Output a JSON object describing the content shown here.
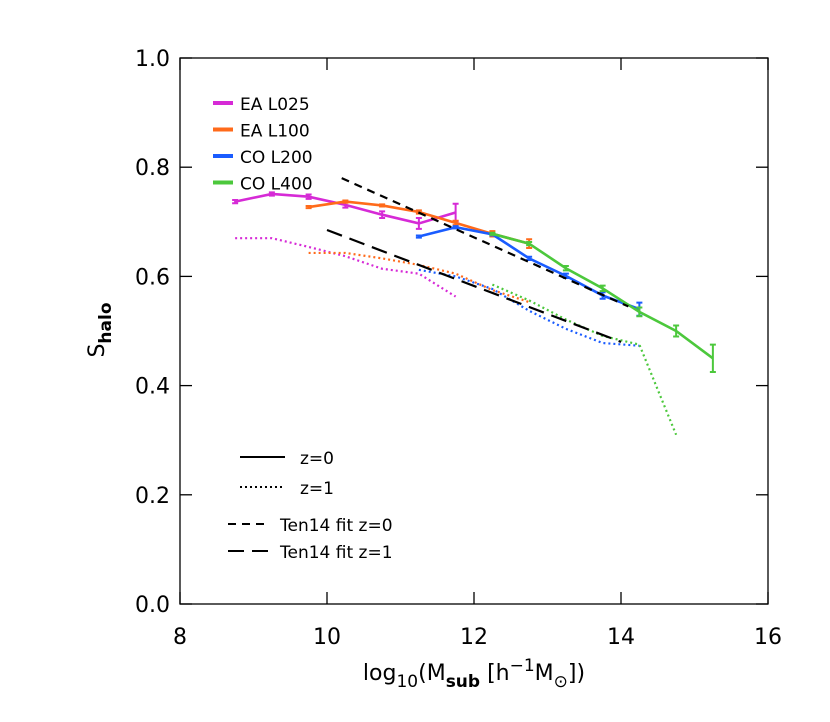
{
  "chart_data": {
    "type": "line",
    "ylabel": "S",
    "ylabel_sub": "halo",
    "xlabel_parts": [
      {
        "text": "log",
        "pos": "base"
      },
      {
        "text": "10",
        "pos": "sub"
      },
      {
        "text": "(M",
        "pos": "base"
      },
      {
        "text": "sub",
        "pos": "sub"
      },
      {
        "text": " [h",
        "pos": "base"
      },
      {
        "text": "−1",
        "pos": "sup"
      },
      {
        "text": "M",
        "pos": "base"
      },
      {
        "text": "⊙",
        "pos": "sub"
      },
      {
        "text": "])",
        "pos": "base"
      }
    ],
    "xlim": [
      8,
      16
    ],
    "ylim": [
      0,
      1
    ],
    "xticks": [
      8,
      10,
      12,
      14,
      16
    ],
    "yticks": [
      {
        "value": 0,
        "label": "0.0"
      },
      0.2,
      0.4,
      0.6,
      0.8,
      {
        "value": 1,
        "label": "1.0"
      }
    ],
    "series": [
      {
        "name": "EA L025",
        "color": "#d62ad6",
        "style": "solid",
        "x": [
          8.75,
          9.25,
          9.75,
          10.25,
          10.75,
          11.25,
          11.75
        ],
        "values": [
          0.737,
          0.751,
          0.746,
          0.731,
          0.713,
          0.697,
          0.717
        ],
        "errors": [
          0.003,
          0.003,
          0.004,
          0.005,
          0.006,
          0.01,
          0.016
        ]
      },
      {
        "name": "EA L100",
        "color": "#ff6a1a",
        "style": "solid",
        "x": [
          9.75,
          10.25,
          10.75,
          11.25,
          11.75,
          12.25,
          12.75
        ],
        "values": [
          0.727,
          0.737,
          0.73,
          0.718,
          0.698,
          0.678,
          0.66
        ],
        "errors": [
          0.002,
          0.002,
          0.002,
          0.003,
          0.004,
          0.005,
          0.008
        ]
      },
      {
        "name": "CO L200",
        "color": "#1a5cff",
        "style": "solid",
        "x": [
          11.25,
          11.75,
          12.25,
          12.75,
          13.25,
          13.75,
          14.25
        ],
        "values": [
          0.673,
          0.69,
          0.677,
          0.633,
          0.601,
          0.565,
          0.54
        ],
        "errors": [
          0.002,
          0.002,
          0.002,
          0.003,
          0.004,
          0.006,
          0.012
        ]
      },
      {
        "name": "CO L400",
        "color": "#4cc83c",
        "style": "solid",
        "x": [
          12.25,
          12.75,
          13.25,
          13.75,
          14.25,
          14.75,
          15.25
        ],
        "values": [
          0.678,
          0.66,
          0.615,
          0.578,
          0.535,
          0.5,
          0.45
        ],
        "errors": [
          0.002,
          0.003,
          0.004,
          0.005,
          0.008,
          0.01,
          0.025
        ]
      },
      {
        "color": "#d62ad6",
        "style": "dotted",
        "x": [
          8.75,
          9.25,
          9.75,
          10.25,
          10.75,
          11.25,
          11.75
        ],
        "values": [
          0.67,
          0.67,
          0.654,
          0.637,
          0.614,
          0.605,
          0.563
        ]
      },
      {
        "color": "#ff6a1a",
        "style": "dotted",
        "x": [
          9.75,
          10.25,
          10.75,
          11.25,
          11.75,
          12.25,
          12.75
        ],
        "values": [
          0.643,
          0.643,
          0.633,
          0.621,
          0.605,
          0.575,
          0.553
        ]
      },
      {
        "color": "#1a5cff",
        "style": "dotted",
        "x": [
          11.25,
          11.75,
          12.25,
          12.75,
          13.25,
          13.75,
          14.25
        ],
        "values": [
          0.612,
          0.6,
          0.577,
          0.537,
          0.504,
          0.478,
          0.473
        ]
      },
      {
        "color": "#4cc83c",
        "style": "dotted",
        "x": [
          12.25,
          12.75,
          13.25,
          13.75,
          14.25,
          14.75
        ],
        "values": [
          0.585,
          0.556,
          0.521,
          0.491,
          0.475,
          0.31
        ]
      },
      {
        "color": "#000000",
        "style": "short-dash",
        "x": [
          10.2,
          14.1
        ],
        "values": [
          0.78,
          0.545
        ]
      },
      {
        "color": "#000000",
        "style": "long-dash",
        "x": [
          10,
          14
        ],
        "values": [
          0.685,
          0.48
        ]
      }
    ],
    "style_legend": [
      {
        "label": "z=0",
        "style": "solid"
      },
      {
        "label": "z=1",
        "style": "dotted"
      },
      {
        "label": "Ten14 fit z=0",
        "style": "short-dash"
      },
      {
        "label": "Ten14 fit z=1",
        "style": "long-dash"
      }
    ]
  }
}
